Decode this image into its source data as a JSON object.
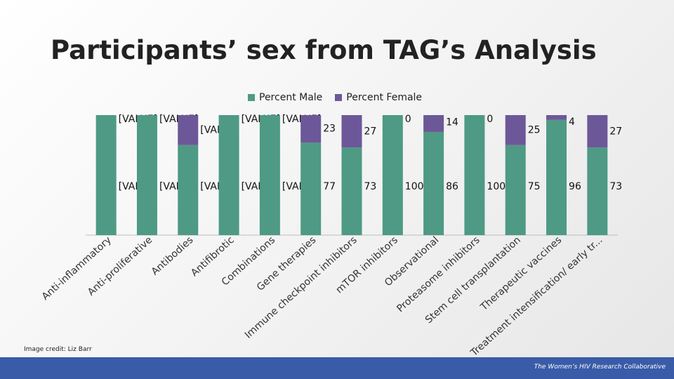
{
  "title": "Participants’ sex from TAG’s Analysis",
  "image_credit": "Image credit: Liz Barr",
  "footer_text": "The Women’s HIV Research Collaborative",
  "colors": {
    "male": "#4e9a84",
    "female": "#6c5898",
    "background": "#f2f2f2",
    "footer": "#3a5ba8"
  },
  "chart_data": {
    "type": "bar",
    "stacked": true,
    "categories": [
      "Anti-inflammatory",
      "Anti-proliferative",
      "Antibodies",
      "Antifibrotic",
      "Combinations",
      "Gene therapies",
      "Immune checkpoint inhibitors",
      "mTOR inhibitors",
      "Observational",
      "Proteasome inhibitors",
      "Stem cell transplantation",
      "Therapeutic vaccines",
      "Treatment intensification/ early tr..."
    ],
    "series": [
      {
        "name": "Percent Male",
        "values": [
          100,
          100,
          75,
          100,
          100,
          77,
          73,
          100,
          86,
          100,
          75,
          96,
          73
        ],
        "labels": [
          "[VALUE]",
          "[VALUE]",
          "[VALUE]",
          "[VALUE]",
          "[VALUE]",
          "77",
          "73",
          "100",
          "86",
          "100",
          "75",
          "96",
          "73"
        ]
      },
      {
        "name": "Percent Female",
        "values": [
          0,
          0,
          25,
          0,
          0,
          23,
          27,
          0,
          14,
          0,
          25,
          4,
          27
        ],
        "labels": [
          "[VALUE]",
          "[VALUE]",
          "[VALUE]",
          "[VALUE]",
          "[VALUE]",
          "23",
          "27",
          "0",
          "14",
          "0",
          "25",
          "4",
          "27"
        ]
      }
    ],
    "ylim": [
      0,
      100
    ],
    "legend_position": "top",
    "grid": false
  }
}
